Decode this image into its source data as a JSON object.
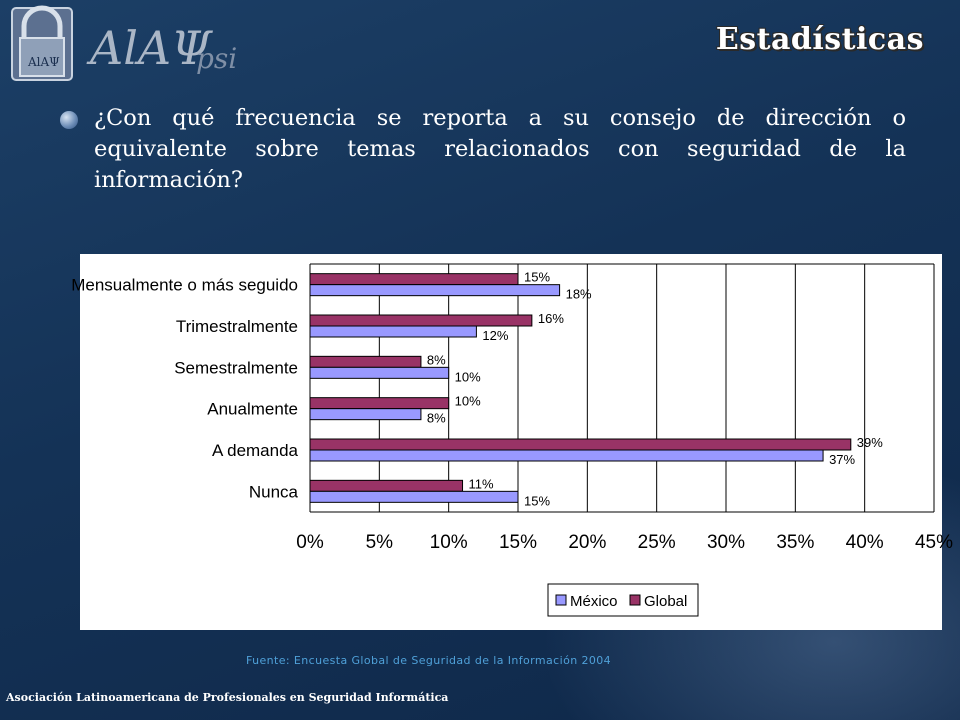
{
  "header": {
    "title": "Estadísticas",
    "logo_text": "AlAΨ",
    "logo_suffix": "psi",
    "logo_small": "AlAΨ"
  },
  "question": "¿Con qué frecuencia se reporta a su consejo de dirección o equivalente sobre temas relacionados con seguridad de la información?",
  "source": "Fuente: Encuesta Global de Seguridad de la Información 2004",
  "footer": "Asociación Latinoamericana de Profesionales en Seguridad Informática",
  "colors": {
    "mexico": "#9999ff",
    "global": "#993366"
  },
  "chart_data": {
    "type": "bar",
    "orientation": "horizontal",
    "categories": [
      "Mensualmente o más seguido",
      "Trimestralmente",
      "Semestralmente",
      "Anualmente",
      "A demanda",
      "Nunca"
    ],
    "series": [
      {
        "name": "Global",
        "values": [
          15,
          16,
          8,
          10,
          39,
          11
        ],
        "labels": [
          "15%",
          "16%",
          "8%",
          "10%",
          "39%",
          "11%"
        ]
      },
      {
        "name": "México",
        "values": [
          18,
          12,
          10,
          8,
          37,
          15
        ],
        "labels": [
          "18%",
          "12%",
          "10%",
          "8%",
          "37%",
          "15%"
        ]
      }
    ],
    "xlim": [
      0,
      45
    ],
    "xticks": [
      "0%",
      "5%",
      "10%",
      "15%",
      "20%",
      "25%",
      "30%",
      "35%",
      "40%",
      "45%"
    ],
    "grid": true,
    "legend": [
      "México",
      "Global"
    ],
    "legend_position": "bottom-right"
  }
}
